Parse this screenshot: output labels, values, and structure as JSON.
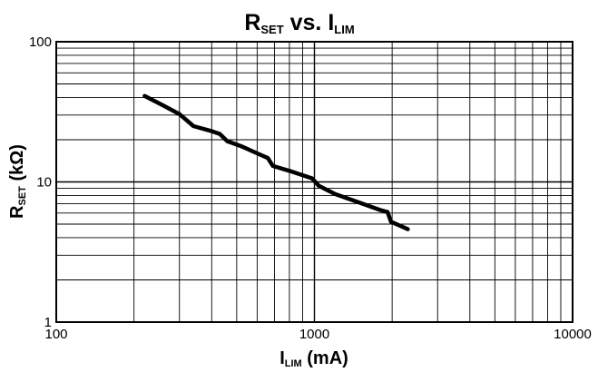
{
  "chart_data": {
    "type": "line",
    "title": {
      "main": "R",
      "main_sub": "SET",
      "middle": " vs. ",
      "end": "I",
      "end_sub": "LIM"
    },
    "xlabel": {
      "main": "I",
      "sub": "LIM",
      "rest": " (mA)"
    },
    "ylabel": {
      "main": "R",
      "sub": "SET",
      "rest": " (kΩ)"
    },
    "x_scale": "log",
    "y_scale": "log",
    "xlim": [
      100,
      10000
    ],
    "ylim": [
      1,
      100
    ],
    "x_ticks": [
      "100",
      "1000",
      "10000"
    ],
    "y_ticks": [
      "1",
      "10",
      "100"
    ],
    "grid": true,
    "series": [
      {
        "x": [
          220,
          260,
          300,
          340,
          400,
          430,
          460,
          520,
          600,
          660,
          690,
          800,
          980,
          1040,
          1200,
          1500,
          1800,
          1920,
          1980,
          2300
        ],
        "y": [
          41,
          35,
          30.5,
          25,
          23,
          22,
          19.5,
          18,
          16,
          14.8,
          13,
          12,
          10.6,
          9.4,
          8.2,
          7.1,
          6.3,
          6.1,
          5.2,
          4.6
        ]
      }
    ]
  }
}
